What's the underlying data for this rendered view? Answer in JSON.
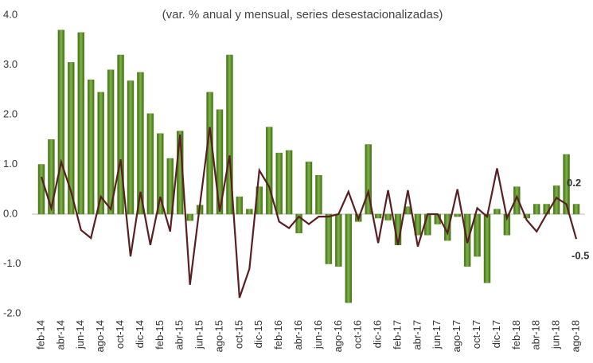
{
  "chart_data": {
    "type": "bar_line",
    "title": "(var. % anual y mensual, series desestacionalizadas)",
    "categories": [
      "feb-14",
      null,
      "abr-14",
      null,
      "jun-14",
      null,
      "ago-14",
      null,
      "oct-14",
      null,
      "dic-14",
      null,
      "feb-15",
      null,
      "abr-15",
      null,
      "jun-15",
      null,
      "ago-15",
      null,
      "oct-15",
      null,
      "dic-15",
      null,
      "feb-16",
      null,
      "abr-16",
      null,
      "jun-16",
      null,
      "ago-16",
      null,
      "oct-16",
      null,
      "dic-16",
      null,
      "feb-17",
      null,
      "abr-17",
      null,
      "jun-17",
      null,
      "ago-17",
      null,
      "oct-17",
      null,
      "dic-17",
      null,
      "feb-18",
      null,
      "abr-18",
      null,
      "jun-18",
      null,
      "ago-18"
    ],
    "series": [
      {
        "type": "bar",
        "color": "#5b8c2a",
        "label_last": true,
        "values": [
          1.0,
          1.5,
          3.7,
          3.05,
          3.65,
          2.7,
          2.45,
          2.9,
          3.2,
          2.68,
          2.85,
          2.02,
          1.62,
          1.12,
          1.67,
          -0.13,
          0.18,
          2.45,
          2.1,
          3.2,
          0.35,
          0.1,
          0.55,
          1.75,
          1.23,
          1.28,
          -0.38,
          1.05,
          0.78,
          -1.0,
          -1.05,
          -1.78,
          -0.15,
          1.4,
          -0.08,
          -0.12,
          -0.62,
          0.15,
          -0.42,
          -0.42,
          -0.2,
          -0.53,
          -0.05,
          -1.05,
          -0.85,
          -1.38,
          0.1,
          -0.42,
          0.55,
          -0.08,
          0.2,
          0.2,
          0.57,
          1.2,
          0.2
        ]
      },
      {
        "type": "line",
        "color": "#5a1f22",
        "label_last": true,
        "values": [
          0.75,
          0.12,
          1.05,
          0.45,
          -0.32,
          -0.48,
          0.35,
          0.1,
          1.1,
          -0.85,
          0.45,
          -0.62,
          0.35,
          -0.35,
          1.6,
          -1.42,
          0.18,
          1.75,
          0.05,
          1.18,
          -1.68,
          -1.1,
          0.88,
          0.55,
          -0.15,
          -0.28,
          -0.05,
          -0.2,
          -0.05,
          -0.05,
          0.0,
          0.45,
          -0.1,
          0.45,
          -0.58,
          0.48,
          -0.62,
          0.48,
          -0.65,
          0.0,
          0.0,
          -0.38,
          0.5,
          -0.58,
          0.12,
          -0.05,
          0.92,
          -0.08,
          0.35,
          -0.12,
          -0.35,
          0.0,
          0.33,
          0.2,
          -0.5
        ]
      }
    ],
    "ylim": [
      -2.0,
      4.0
    ],
    "yticks": [
      {
        "value": -2,
        "label": "-2.0"
      },
      {
        "value": -1,
        "label": "-1.0"
      },
      {
        "value": 0,
        "label": "0.0"
      },
      {
        "value": 1,
        "label": "1.0"
      },
      {
        "value": 2,
        "label": "2.0"
      },
      {
        "value": 3,
        "label": "3.0"
      },
      {
        "value": 4,
        "label": "4.0"
      }
    ]
  }
}
